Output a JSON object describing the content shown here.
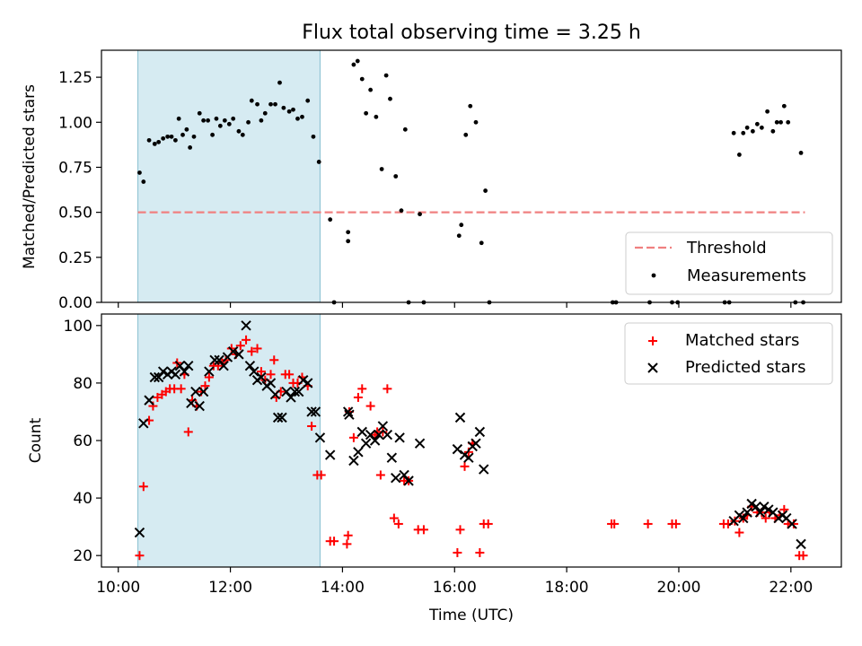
{
  "figure": {
    "title": "Flux total observing time = 3.25 h",
    "xlabel": "Time (UTC)",
    "x_ticks": [
      "10:00",
      "12:00",
      "14:00",
      "16:00",
      "18:00",
      "20:00",
      "22:00"
    ],
    "x_range_hours": [
      9.7,
      22.9
    ],
    "shaded_interval_hours": [
      10.35,
      13.6
    ]
  },
  "colors": {
    "shade": "#add8e6",
    "threshold": "#f08080",
    "measurement": "#000000",
    "matched": "#ff0000",
    "predicted": "#000000"
  },
  "chart_data": [
    {
      "type": "scatter",
      "ylabel": "Matched/Predicted stars",
      "ylim": [
        0,
        1.4
      ],
      "y_ticks": [
        "0.00",
        "0.25",
        "0.50",
        "0.75",
        "1.00",
        "1.25"
      ],
      "threshold": {
        "name": "Threshold",
        "value": 0.5,
        "x_range": [
          10.35,
          22.25
        ]
      },
      "legend_position": "lower-right",
      "series": [
        {
          "name": "Measurements",
          "points": [
            [
              10.38,
              0.72
            ],
            [
              10.45,
              0.67
            ],
            [
              10.55,
              0.9
            ],
            [
              10.65,
              0.88
            ],
            [
              10.72,
              0.89
            ],
            [
              10.8,
              0.91
            ],
            [
              10.88,
              0.92
            ],
            [
              10.95,
              0.92
            ],
            [
              11.02,
              0.9
            ],
            [
              11.08,
              1.02
            ],
            [
              11.15,
              0.93
            ],
            [
              11.22,
              0.96
            ],
            [
              11.28,
              0.86
            ],
            [
              11.35,
              0.92
            ],
            [
              11.45,
              1.05
            ],
            [
              11.52,
              1.01
            ],
            [
              11.6,
              1.01
            ],
            [
              11.68,
              0.93
            ],
            [
              11.75,
              1.02
            ],
            [
              11.82,
              0.98
            ],
            [
              11.9,
              1.01
            ],
            [
              11.98,
              0.99
            ],
            [
              12.05,
              1.02
            ],
            [
              12.15,
              0.95
            ],
            [
              12.22,
              0.93
            ],
            [
              12.32,
              1.0
            ],
            [
              12.38,
              1.12
            ],
            [
              12.48,
              1.1
            ],
            [
              12.55,
              1.01
            ],
            [
              12.62,
              1.05
            ],
            [
              12.72,
              1.1
            ],
            [
              12.8,
              1.1
            ],
            [
              12.88,
              1.22
            ],
            [
              12.95,
              1.08
            ],
            [
              13.05,
              1.06
            ],
            [
              13.12,
              1.07
            ],
            [
              13.2,
              1.02
            ],
            [
              13.28,
              1.03
            ],
            [
              13.38,
              1.12
            ],
            [
              13.48,
              0.92
            ],
            [
              13.58,
              0.78
            ],
            [
              13.78,
              0.46
            ],
            [
              13.85,
              0.0
            ],
            [
              14.1,
              0.39
            ],
            [
              14.1,
              0.34
            ],
            [
              14.2,
              1.32
            ],
            [
              14.27,
              1.34
            ],
            [
              14.35,
              1.24
            ],
            [
              14.42,
              1.05
            ],
            [
              14.5,
              1.18
            ],
            [
              14.6,
              1.03
            ],
            [
              14.7,
              0.74
            ],
            [
              14.78,
              1.26
            ],
            [
              14.85,
              1.13
            ],
            [
              14.95,
              0.7
            ],
            [
              15.05,
              0.51
            ],
            [
              15.12,
              0.96
            ],
            [
              15.18,
              0.0
            ],
            [
              15.38,
              0.49
            ],
            [
              15.45,
              0.0
            ],
            [
              16.08,
              0.37
            ],
            [
              16.12,
              0.43
            ],
            [
              16.2,
              0.93
            ],
            [
              16.28,
              1.09
            ],
            [
              16.38,
              1.0
            ],
            [
              16.48,
              0.33
            ],
            [
              16.55,
              0.62
            ],
            [
              16.62,
              0.0
            ],
            [
              18.82,
              0.0
            ],
            [
              18.88,
              0.0
            ],
            [
              19.48,
              0.0
            ],
            [
              19.88,
              0.0
            ],
            [
              19.98,
              0.0
            ],
            [
              20.82,
              0.0
            ],
            [
              20.9,
              0.0
            ],
            [
              20.98,
              0.94
            ],
            [
              21.08,
              0.82
            ],
            [
              21.15,
              0.94
            ],
            [
              21.22,
              0.97
            ],
            [
              21.32,
              0.95
            ],
            [
              21.4,
              0.99
            ],
            [
              21.48,
              0.97
            ],
            [
              21.58,
              1.06
            ],
            [
              21.68,
              0.95
            ],
            [
              21.75,
              1.0
            ],
            [
              21.82,
              1.0
            ],
            [
              21.88,
              1.09
            ],
            [
              21.95,
              1.0
            ],
            [
              22.08,
              0.0
            ],
            [
              22.18,
              0.83
            ],
            [
              22.22,
              0.0
            ]
          ]
        }
      ]
    },
    {
      "type": "scatter",
      "ylabel": "Count",
      "ylim": [
        16,
        104
      ],
      "y_ticks": [
        "20",
        "40",
        "60",
        "80",
        "100"
      ],
      "legend_position": "upper-right",
      "series": [
        {
          "name": "Matched stars",
          "points": [
            [
              10.38,
              20
            ],
            [
              10.45,
              44
            ],
            [
              10.55,
              67
            ],
            [
              10.62,
              72
            ],
            [
              10.7,
              75
            ],
            [
              10.78,
              76
            ],
            [
              10.85,
              77
            ],
            [
              10.92,
              78
            ],
            [
              11.0,
              78
            ],
            [
              11.05,
              87
            ],
            [
              11.12,
              78
            ],
            [
              11.18,
              83
            ],
            [
              11.25,
              63
            ],
            [
              11.32,
              74
            ],
            [
              11.4,
              72
            ],
            [
              11.48,
              77
            ],
            [
              11.55,
              79
            ],
            [
              11.62,
              82
            ],
            [
              11.7,
              86
            ],
            [
              11.78,
              86
            ],
            [
              11.85,
              87
            ],
            [
              11.92,
              88
            ],
            [
              12.02,
              92
            ],
            [
              12.1,
              90
            ],
            [
              12.18,
              93
            ],
            [
              12.28,
              95
            ],
            [
              12.38,
              91
            ],
            [
              12.48,
              92
            ],
            [
              12.55,
              84
            ],
            [
              12.62,
              81
            ],
            [
              12.72,
              83
            ],
            [
              12.78,
              88
            ],
            [
              12.82,
              75
            ],
            [
              12.9,
              77
            ],
            [
              12.98,
              83
            ],
            [
              13.05,
              83
            ],
            [
              13.12,
              80
            ],
            [
              13.2,
              80
            ],
            [
              13.28,
              82
            ],
            [
              13.38,
              79
            ],
            [
              13.45,
              65
            ],
            [
              13.55,
              48
            ],
            [
              13.62,
              48
            ],
            [
              13.78,
              25
            ],
            [
              13.85,
              25
            ],
            [
              14.08,
              24
            ],
            [
              14.1,
              27
            ],
            [
              14.12,
              70
            ],
            [
              14.2,
              61
            ],
            [
              14.28,
              75
            ],
            [
              14.35,
              78
            ],
            [
              14.5,
              72
            ],
            [
              14.58,
              62
            ],
            [
              14.62,
              63
            ],
            [
              14.68,
              48
            ],
            [
              14.72,
              63
            ],
            [
              14.8,
              78
            ],
            [
              14.92,
              33
            ],
            [
              15.0,
              31
            ],
            [
              15.1,
              46
            ],
            [
              15.18,
              46
            ],
            [
              15.35,
              29
            ],
            [
              15.45,
              29
            ],
            [
              16.05,
              21
            ],
            [
              16.1,
              29
            ],
            [
              16.18,
              51
            ],
            [
              16.25,
              56
            ],
            [
              16.32,
              59
            ],
            [
              16.45,
              21
            ],
            [
              16.52,
              31
            ],
            [
              16.6,
              31
            ],
            [
              18.8,
              31
            ],
            [
              18.85,
              31
            ],
            [
              19.45,
              31
            ],
            [
              19.88,
              31
            ],
            [
              19.95,
              31
            ],
            [
              20.8,
              31
            ],
            [
              20.88,
              31
            ],
            [
              21.0,
              32
            ],
            [
              21.08,
              28
            ],
            [
              21.15,
              33
            ],
            [
              21.22,
              34
            ],
            [
              21.3,
              37
            ],
            [
              21.4,
              35
            ],
            [
              21.48,
              35
            ],
            [
              21.55,
              33
            ],
            [
              21.62,
              35
            ],
            [
              21.72,
              33
            ],
            [
              21.8,
              34
            ],
            [
              21.88,
              36
            ],
            [
              21.95,
              31
            ],
            [
              22.05,
              31
            ],
            [
              22.15,
              20
            ],
            [
              22.22,
              20
            ]
          ]
        },
        {
          "name": "Predicted stars",
          "points": [
            [
              10.38,
              28
            ],
            [
              10.45,
              66
            ],
            [
              10.55,
              74
            ],
            [
              10.65,
              82
            ],
            [
              10.72,
              82
            ],
            [
              10.8,
              84
            ],
            [
              10.88,
              83
            ],
            [
              10.95,
              84
            ],
            [
              11.02,
              83
            ],
            [
              11.1,
              86
            ],
            [
              11.18,
              84
            ],
            [
              11.25,
              86
            ],
            [
              11.3,
              73
            ],
            [
              11.38,
              77
            ],
            [
              11.45,
              72
            ],
            [
              11.52,
              77
            ],
            [
              11.62,
              84
            ],
            [
              11.72,
              88
            ],
            [
              11.8,
              88
            ],
            [
              11.88,
              86
            ],
            [
              11.95,
              89
            ],
            [
              12.05,
              91
            ],
            [
              12.15,
              90
            ],
            [
              12.28,
              100
            ],
            [
              12.35,
              86
            ],
            [
              12.42,
              84
            ],
            [
              12.48,
              81
            ],
            [
              12.55,
              82
            ],
            [
              12.65,
              79
            ],
            [
              12.72,
              80
            ],
            [
              12.8,
              76
            ],
            [
              12.85,
              68
            ],
            [
              12.92,
              68
            ],
            [
              13.0,
              77
            ],
            [
              13.08,
              75
            ],
            [
              13.15,
              77
            ],
            [
              13.22,
              77
            ],
            [
              13.3,
              81
            ],
            [
              13.38,
              80
            ],
            [
              13.45,
              70
            ],
            [
              13.52,
              70
            ],
            [
              13.6,
              61
            ],
            [
              13.78,
              55
            ],
            [
              14.1,
              70
            ],
            [
              14.12,
              69
            ],
            [
              14.2,
              53
            ],
            [
              14.28,
              56
            ],
            [
              14.35,
              63
            ],
            [
              14.42,
              59
            ],
            [
              14.5,
              62
            ],
            [
              14.58,
              60
            ],
            [
              14.65,
              62
            ],
            [
              14.72,
              65
            ],
            [
              14.8,
              62
            ],
            [
              14.88,
              54
            ],
            [
              14.95,
              47
            ],
            [
              15.02,
              61
            ],
            [
              15.1,
              48
            ],
            [
              15.18,
              46
            ],
            [
              15.38,
              59
            ],
            [
              16.05,
              57
            ],
            [
              16.1,
              68
            ],
            [
              16.18,
              55
            ],
            [
              16.25,
              54
            ],
            [
              16.32,
              58
            ],
            [
              16.38,
              59
            ],
            [
              16.45,
              63
            ],
            [
              16.52,
              50
            ],
            [
              20.98,
              32
            ],
            [
              21.08,
              34
            ],
            [
              21.15,
              33
            ],
            [
              21.22,
              35
            ],
            [
              21.3,
              38
            ],
            [
              21.38,
              37
            ],
            [
              21.45,
              35
            ],
            [
              21.52,
              37
            ],
            [
              21.6,
              36
            ],
            [
              21.68,
              35
            ],
            [
              21.78,
              33
            ],
            [
              21.85,
              34
            ],
            [
              21.92,
              33
            ],
            [
              22.02,
              31
            ],
            [
              22.18,
              24
            ]
          ]
        }
      ]
    }
  ]
}
